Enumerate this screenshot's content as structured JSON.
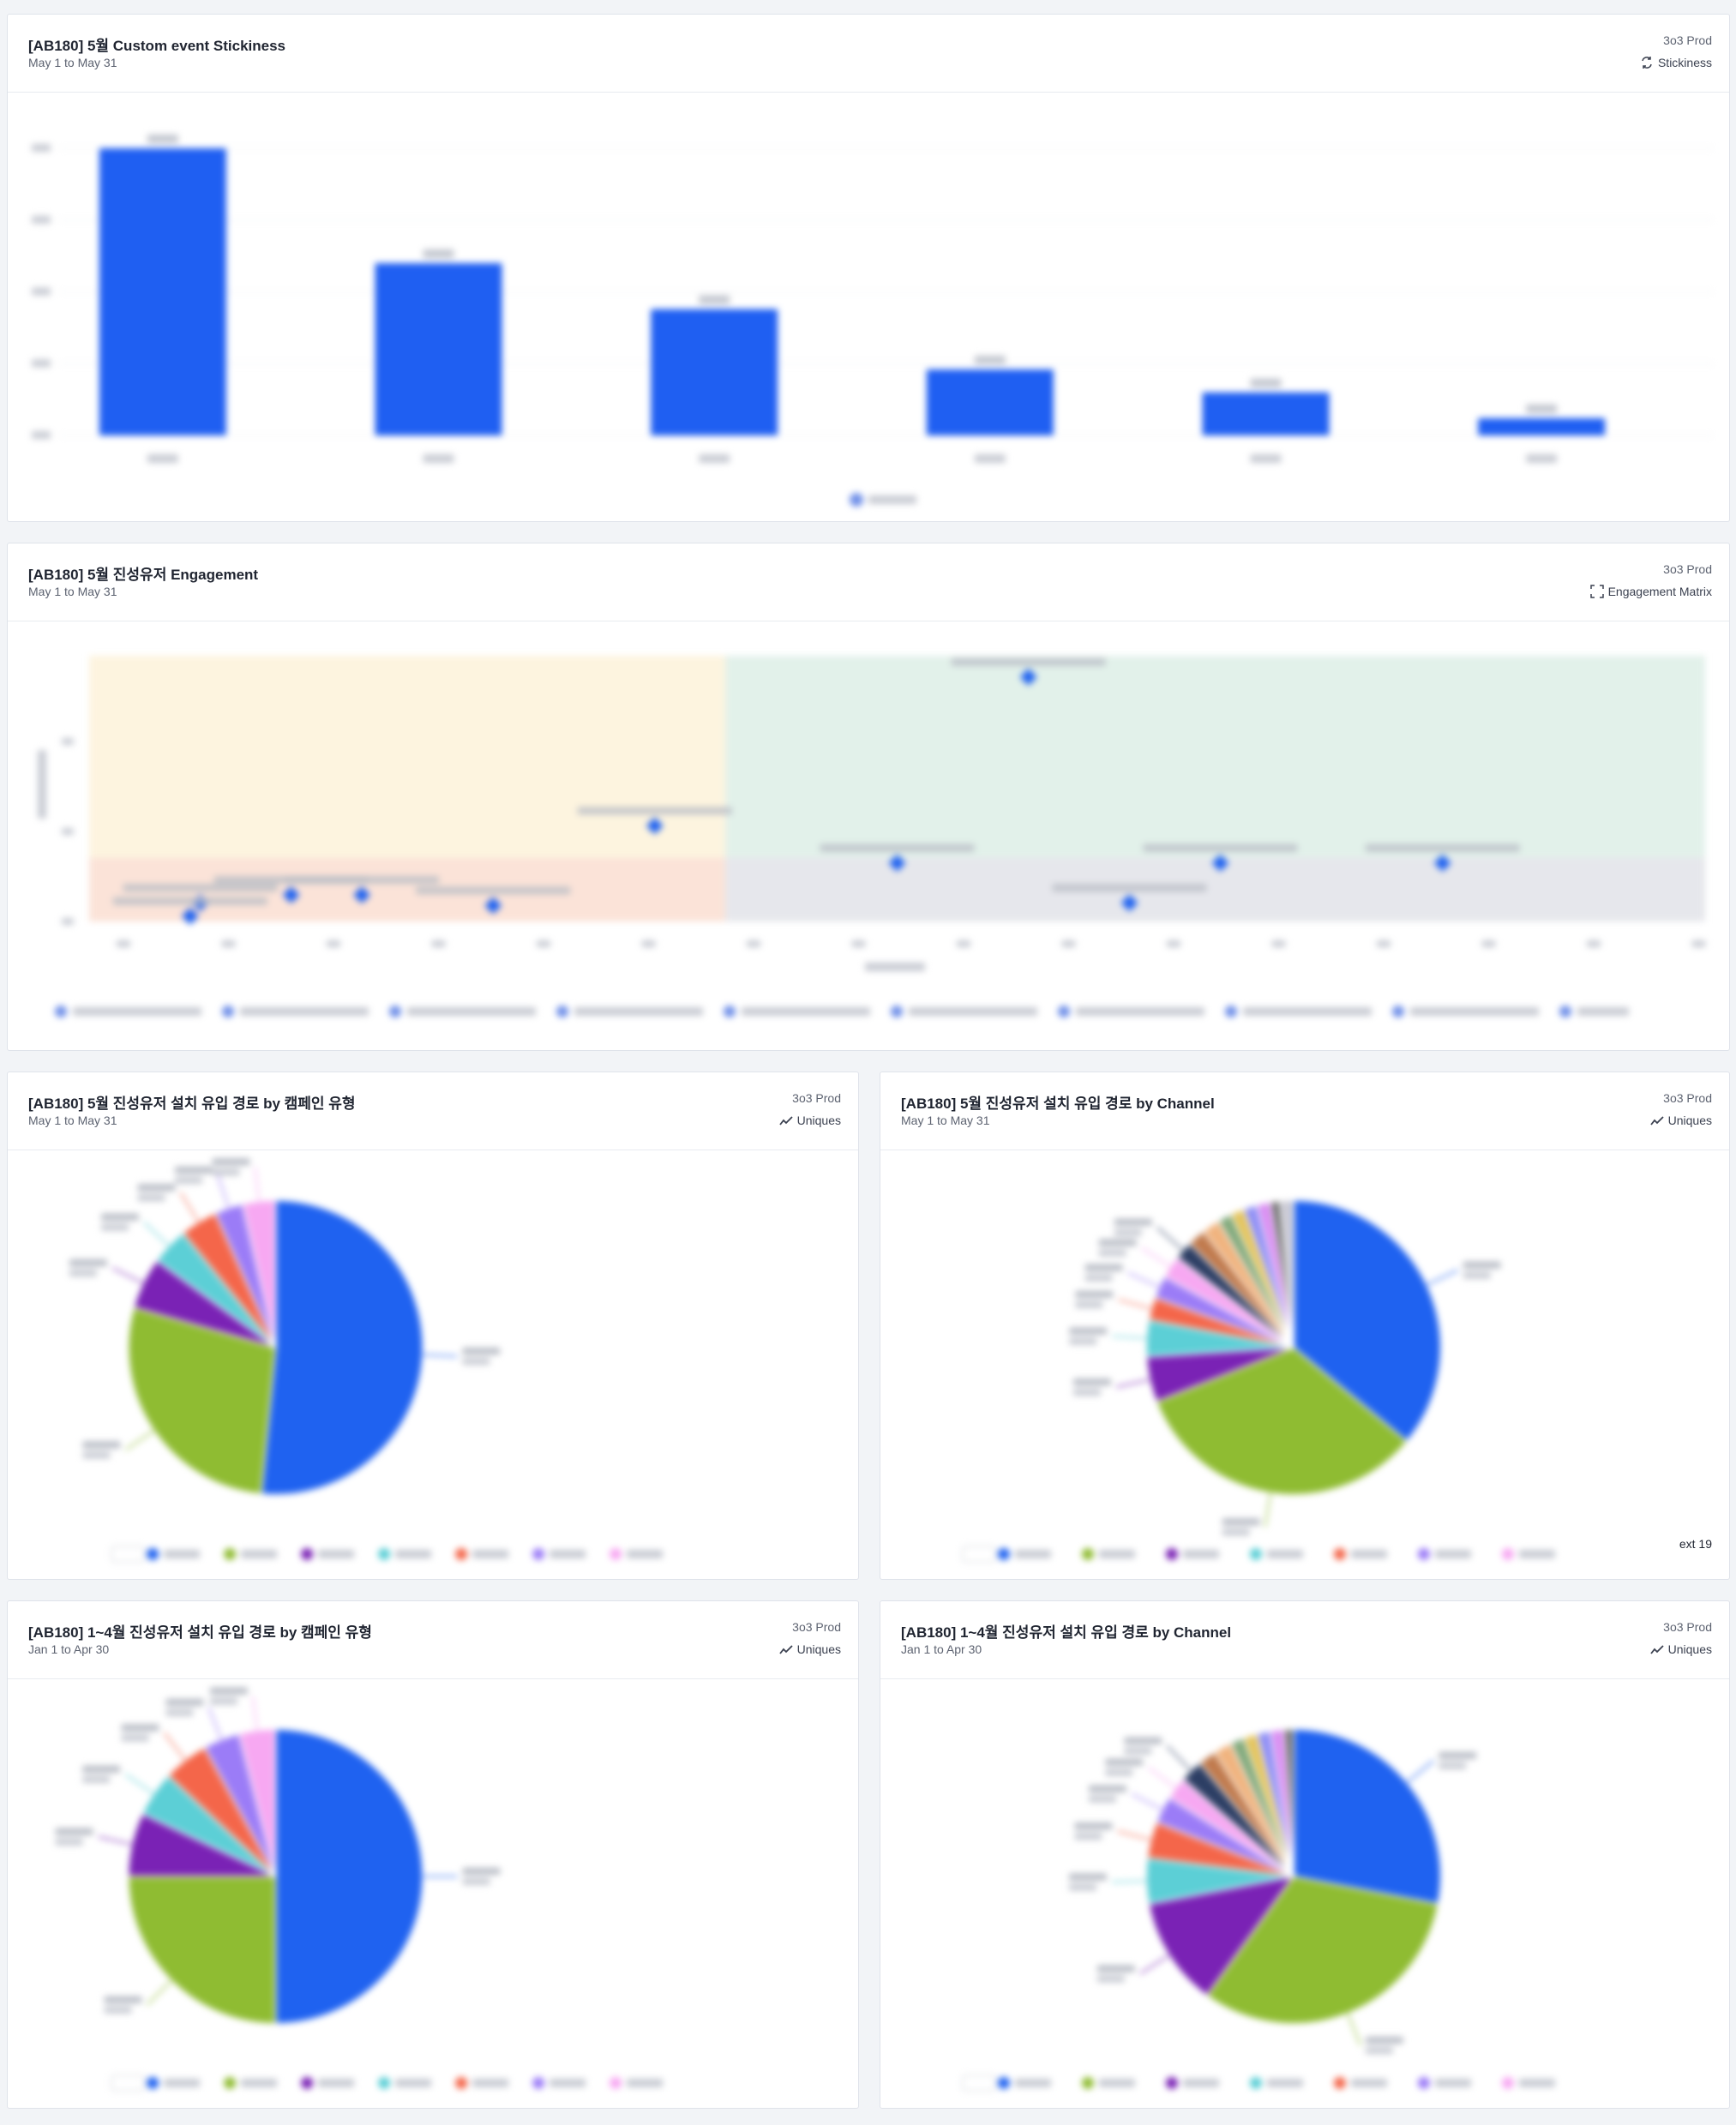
{
  "colors": {
    "accent": "#1f62f0",
    "stickiness_bar": "#1f5ff2"
  },
  "cards": {
    "stickiness": {
      "title": "[AB180] 5월 Custom event Stickiness",
      "date": "May 1 to May 31",
      "project": "3o3 Prod",
      "type_label": "Stickiness",
      "type_icon": "stickiness-icon"
    },
    "engagement": {
      "title": "[AB180] 5월 진성유저 Engagement",
      "date": "May 1 to May 31",
      "project": "3o3 Prod",
      "type_label": "Engagement Matrix",
      "type_icon": "engagement-matrix-icon"
    },
    "pie_may_campaign": {
      "title": "[AB180] 5월 진성유저 설치 유입 경로 by 캠페인 유형",
      "date": "May 1 to May 31",
      "project": "3o3 Prod",
      "type_label": "Uniques",
      "type_icon": "uniques-trend-icon"
    },
    "pie_may_channel": {
      "title": "[AB180] 5월 진성유저 설치 유입 경로 by Channel",
      "date": "May 1 to May 31",
      "project": "3o3 Prod",
      "type_label": "Uniques",
      "type_icon": "uniques-trend-icon",
      "next_label": "ext 19"
    },
    "pie_janapr_campaign": {
      "title": "[AB180] 1~4월 진성유저 설치 유입 경로 by 캠페인 유형",
      "date": "Jan 1 to Apr 30",
      "project": "3o3 Prod",
      "type_label": "Uniques",
      "type_icon": "uniques-trend-icon"
    },
    "pie_janapr_channel": {
      "title": "[AB180] 1~4월 진성유저 설치 유입 경로 by Channel",
      "date": "Jan 1 to Apr 30",
      "project": "3o3 Prod",
      "type_label": "Uniques",
      "type_icon": "uniques-trend-icon"
    }
  },
  "chart_data": [
    {
      "type": "bar",
      "values": [
        100,
        60,
        44,
        23,
        15,
        6
      ],
      "ylim": [
        0,
        100
      ],
      "grid": true,
      "colors": [
        "#1f5ff2"
      ]
    },
    {
      "type": "scatter",
      "quadrant_colors": [
        "#fdf4df",
        "#e2f1ea",
        "#fbe3d8",
        "#e6e7ec"
      ],
      "x_range": [
        -2,
        14
      ],
      "y_range": [
        0,
        5
      ],
      "quadrant_split": {
        "x": 4.3,
        "y": 1.2
      },
      "points": [
        {
          "x": 7.3,
          "y": 4.6
        },
        {
          "x": 3.6,
          "y": 1.8
        },
        {
          "x": 6.0,
          "y": 1.1
        },
        {
          "x": 9.2,
          "y": 1.1
        },
        {
          "x": 11.4,
          "y": 1.1
        },
        {
          "x": 8.3,
          "y": 0.35
        },
        {
          "x": -0.9,
          "y": 0.35
        },
        {
          "x": 0.0,
          "y": 0.5
        },
        {
          "x": 0.7,
          "y": 0.5
        },
        {
          "x": -1.0,
          "y": 0.1
        },
        {
          "x": 2.0,
          "y": 0.3
        }
      ],
      "colors": [
        "#1f62f0"
      ]
    },
    {
      "type": "pie",
      "values": [
        50,
        27,
        5.5,
        4,
        4,
        3,
        3.5
      ],
      "colors": [
        "#1f62f0",
        "#8fbc32",
        "#7a22b5",
        "#5ccfd6",
        "#f4664a",
        "#9b7cf7",
        "#f7a8f2"
      ]
    },
    {
      "type": "pie",
      "values": [
        36,
        33,
        5,
        4,
        2.5,
        2.5,
        2.5,
        2,
        2,
        2,
        1.5,
        1.5,
        1.5,
        1.5,
        1,
        1.5
      ],
      "colors": [
        "#1f62f0",
        "#8fbc32",
        "#7a22b5",
        "#5ccfd6",
        "#f4664a",
        "#9b7cf7",
        "#f7a8f2",
        "#2c3e64",
        "#c07a4d",
        "#f0b37e",
        "#7fa87a",
        "#e3c35a",
        "#8e8ef5",
        "#d98cf2",
        "#6a6a6a",
        "#c9c9d4"
      ]
    },
    {
      "type": "pie",
      "values": [
        50,
        25,
        7,
        5,
        5,
        4,
        4
      ],
      "colors": [
        "#1f62f0",
        "#8fbc32",
        "#7a22b5",
        "#5ccfd6",
        "#f4664a",
        "#9b7cf7",
        "#f7a8f2"
      ]
    },
    {
      "type": "pie",
      "values": [
        28,
        32,
        12,
        5,
        4,
        3,
        2.5,
        2.5,
        2,
        2,
        1.5,
        1.5,
        1.5,
        1.5,
        1
      ],
      "colors": [
        "#1f62f0",
        "#8fbc32",
        "#7a22b5",
        "#5ccfd6",
        "#f4664a",
        "#9b7cf7",
        "#f7a8f2",
        "#2c3e64",
        "#c07a4d",
        "#f0b37e",
        "#7fa87a",
        "#e3c35a",
        "#8e8ef5",
        "#d98cf2",
        "#6a6a6a"
      ]
    }
  ]
}
